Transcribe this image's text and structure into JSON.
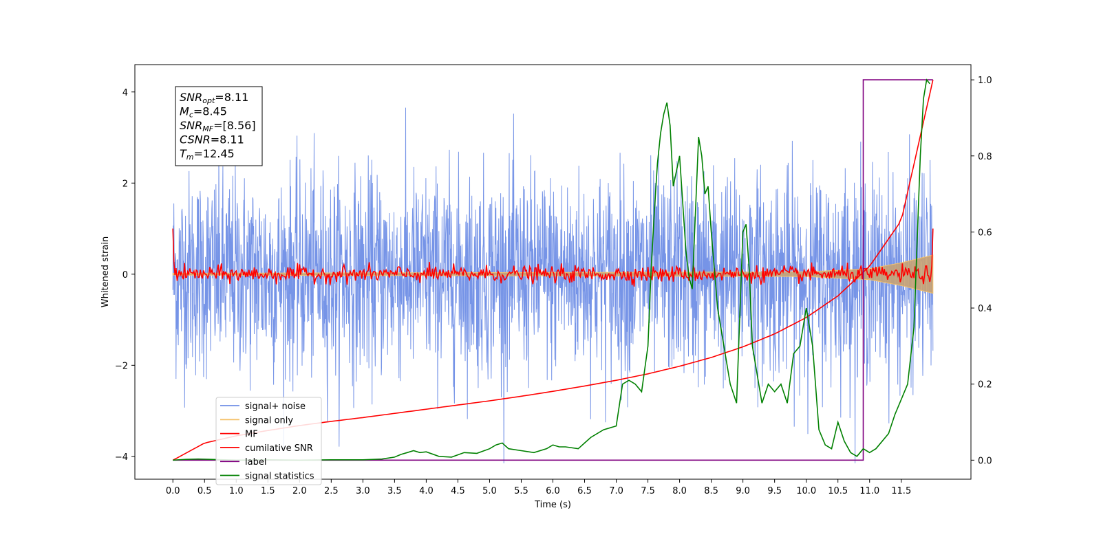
{
  "chart_data": {
    "type": "line",
    "xlabel": "Time (s)",
    "ylabel_left": "Whitened strain",
    "ylabel_right": "",
    "xlim": [
      -0.6,
      12.6
    ],
    "ylim_left": [
      -4.5,
      4.6
    ],
    "ylim_right": [
      -0.05,
      1.04
    ],
    "x_ticks": [
      0.0,
      0.5,
      1.0,
      1.5,
      2.0,
      2.5,
      3.0,
      3.5,
      4.0,
      4.5,
      5.0,
      5.5,
      6.0,
      6.5,
      7.0,
      7.5,
      8.0,
      8.5,
      9.0,
      9.5,
      10.0,
      10.5,
      11.0,
      11.5
    ],
    "x_tick_labels": [
      "0.0",
      "0.5",
      "1.0",
      "1.5",
      "2.0",
      "2.5",
      "3.0",
      "3.5",
      "4.0",
      "4.5",
      "5.0",
      "5.5",
      "6.0",
      "6.5",
      "7.0",
      "7.5",
      "8.0",
      "8.5",
      "9.0",
      "9.5",
      "10.0",
      "10.5",
      "11.0",
      "11.5"
    ],
    "y_left_ticks": [
      -4,
      -2,
      0,
      2,
      4
    ],
    "y_left_tick_labels": [
      "−4",
      "−2",
      "0",
      "2",
      "4"
    ],
    "y_right_ticks": [
      0.0,
      0.2,
      0.4,
      0.6,
      0.8,
      1.0
    ],
    "y_right_tick_labels": [
      "0.0",
      "0.2",
      "0.4",
      "0.6",
      "0.8",
      "1.0"
    ],
    "grid": false,
    "legend_position": "lower-left",
    "series": [
      {
        "name": "signal+ noise",
        "color": "#6f8ee6",
        "axis": "left",
        "style": "noise",
        "x_range": [
          0.0,
          12.0
        ],
        "amplitude_typical": 1.8,
        "amplitude_max": 4.15
      },
      {
        "name": "signal only",
        "color": "#f5c26b",
        "axis": "left",
        "style": "chirp-envelope",
        "x": [
          0.0,
          10.0,
          11.0,
          11.5,
          12.0
        ],
        "envelope": [
          0.02,
          0.05,
          0.12,
          0.25,
          0.42
        ]
      },
      {
        "name": "MF",
        "color": "#ff0000",
        "axis": "left",
        "style": "mf",
        "x_range": [
          0.0,
          12.0
        ],
        "amplitude_typical": 0.12,
        "endpoint_values": [
          1.0,
          1.0
        ]
      },
      {
        "name": "cumilative SNR",
        "color": "#ff0000",
        "axis": "right",
        "style": "line",
        "x": [
          0.0,
          0.5,
          1.0,
          1.5,
          2.0,
          2.5,
          3.0,
          3.5,
          4.0,
          4.5,
          5.0,
          5.5,
          6.0,
          6.5,
          7.0,
          7.5,
          8.0,
          8.5,
          9.0,
          9.5,
          10.0,
          10.5,
          11.0,
          11.5,
          12.0
        ],
        "y": [
          0.0,
          0.045,
          0.064,
          0.078,
          0.091,
          0.102,
          0.112,
          0.123,
          0.134,
          0.145,
          0.156,
          0.168,
          0.181,
          0.195,
          0.21,
          0.227,
          0.247,
          0.27,
          0.298,
          0.332,
          0.375,
          0.432,
          0.51,
          0.63,
          1.0
        ]
      },
      {
        "name": "label",
        "color": "#800080",
        "axis": "right",
        "style": "step",
        "x": [
          0.0,
          10.82,
          10.82,
          10.9,
          10.9,
          12.0
        ],
        "y": [
          0.0,
          0.0,
          0.0,
          0.0,
          1.0,
          1.0
        ]
      },
      {
        "name": "signal statistics",
        "color": "#008000",
        "axis": "right",
        "style": "line",
        "x": [
          0.0,
          0.2,
          0.4,
          0.6,
          0.8,
          1.0,
          1.5,
          2.0,
          2.5,
          3.0,
          3.3,
          3.5,
          3.6,
          3.7,
          3.8,
          3.9,
          4.0,
          4.2,
          4.4,
          4.6,
          4.8,
          5.0,
          5.1,
          5.2,
          5.3,
          5.5,
          5.7,
          5.9,
          6.0,
          6.1,
          6.2,
          6.4,
          6.5,
          6.6,
          6.8,
          7.0,
          7.1,
          7.2,
          7.3,
          7.4,
          7.5,
          7.55,
          7.6,
          7.65,
          7.7,
          7.75,
          7.8,
          7.85,
          7.9,
          8.0,
          8.1,
          8.15,
          8.2,
          8.3,
          8.35,
          8.4,
          8.45,
          8.5,
          8.55,
          8.6,
          8.7,
          8.8,
          8.9,
          9.0,
          9.05,
          9.1,
          9.15,
          9.2,
          9.3,
          9.4,
          9.5,
          9.6,
          9.7,
          9.8,
          9.9,
          10.0,
          10.1,
          10.2,
          10.3,
          10.4,
          10.5,
          10.6,
          10.7,
          10.8,
          10.9,
          11.0,
          11.1,
          11.2,
          11.3,
          11.4,
          11.5,
          11.6,
          11.7,
          11.8,
          11.85,
          11.9,
          11.95
        ],
        "y": [
          0.0,
          0.002,
          0.003,
          0.002,
          0.001,
          0.0,
          0.001,
          0.0,
          0.001,
          0.001,
          0.003,
          0.008,
          0.015,
          0.02,
          0.025,
          0.02,
          0.022,
          0.01,
          0.008,
          0.02,
          0.018,
          0.03,
          0.04,
          0.045,
          0.03,
          0.025,
          0.02,
          0.03,
          0.04,
          0.035,
          0.035,
          0.03,
          0.045,
          0.06,
          0.08,
          0.09,
          0.2,
          0.21,
          0.2,
          0.18,
          0.3,
          0.5,
          0.65,
          0.78,
          0.86,
          0.91,
          0.94,
          0.88,
          0.72,
          0.8,
          0.55,
          0.48,
          0.45,
          0.85,
          0.8,
          0.7,
          0.72,
          0.6,
          0.5,
          0.4,
          0.3,
          0.2,
          0.15,
          0.6,
          0.62,
          0.5,
          0.3,
          0.25,
          0.15,
          0.2,
          0.18,
          0.2,
          0.15,
          0.28,
          0.3,
          0.4,
          0.3,
          0.08,
          0.04,
          0.03,
          0.1,
          0.05,
          0.02,
          0.01,
          0.03,
          0.02,
          0.03,
          0.05,
          0.07,
          0.12,
          0.16,
          0.2,
          0.35,
          0.8,
          0.95,
          1.0,
          0.99
        ]
      }
    ]
  },
  "info_box": {
    "lines": [
      {
        "main": "SNR",
        "sub": "opt",
        "rest": "=8.11"
      },
      {
        "main": "M",
        "sub": "c",
        "rest": "=8.45"
      },
      {
        "main": "SNR",
        "sub": "MF",
        "rest": "=[8.56]"
      },
      {
        "main": "CSNR",
        "sub": "",
        "rest": "=8.11"
      },
      {
        "main": "T",
        "sub": "m",
        "rest": "=12.45"
      }
    ]
  }
}
